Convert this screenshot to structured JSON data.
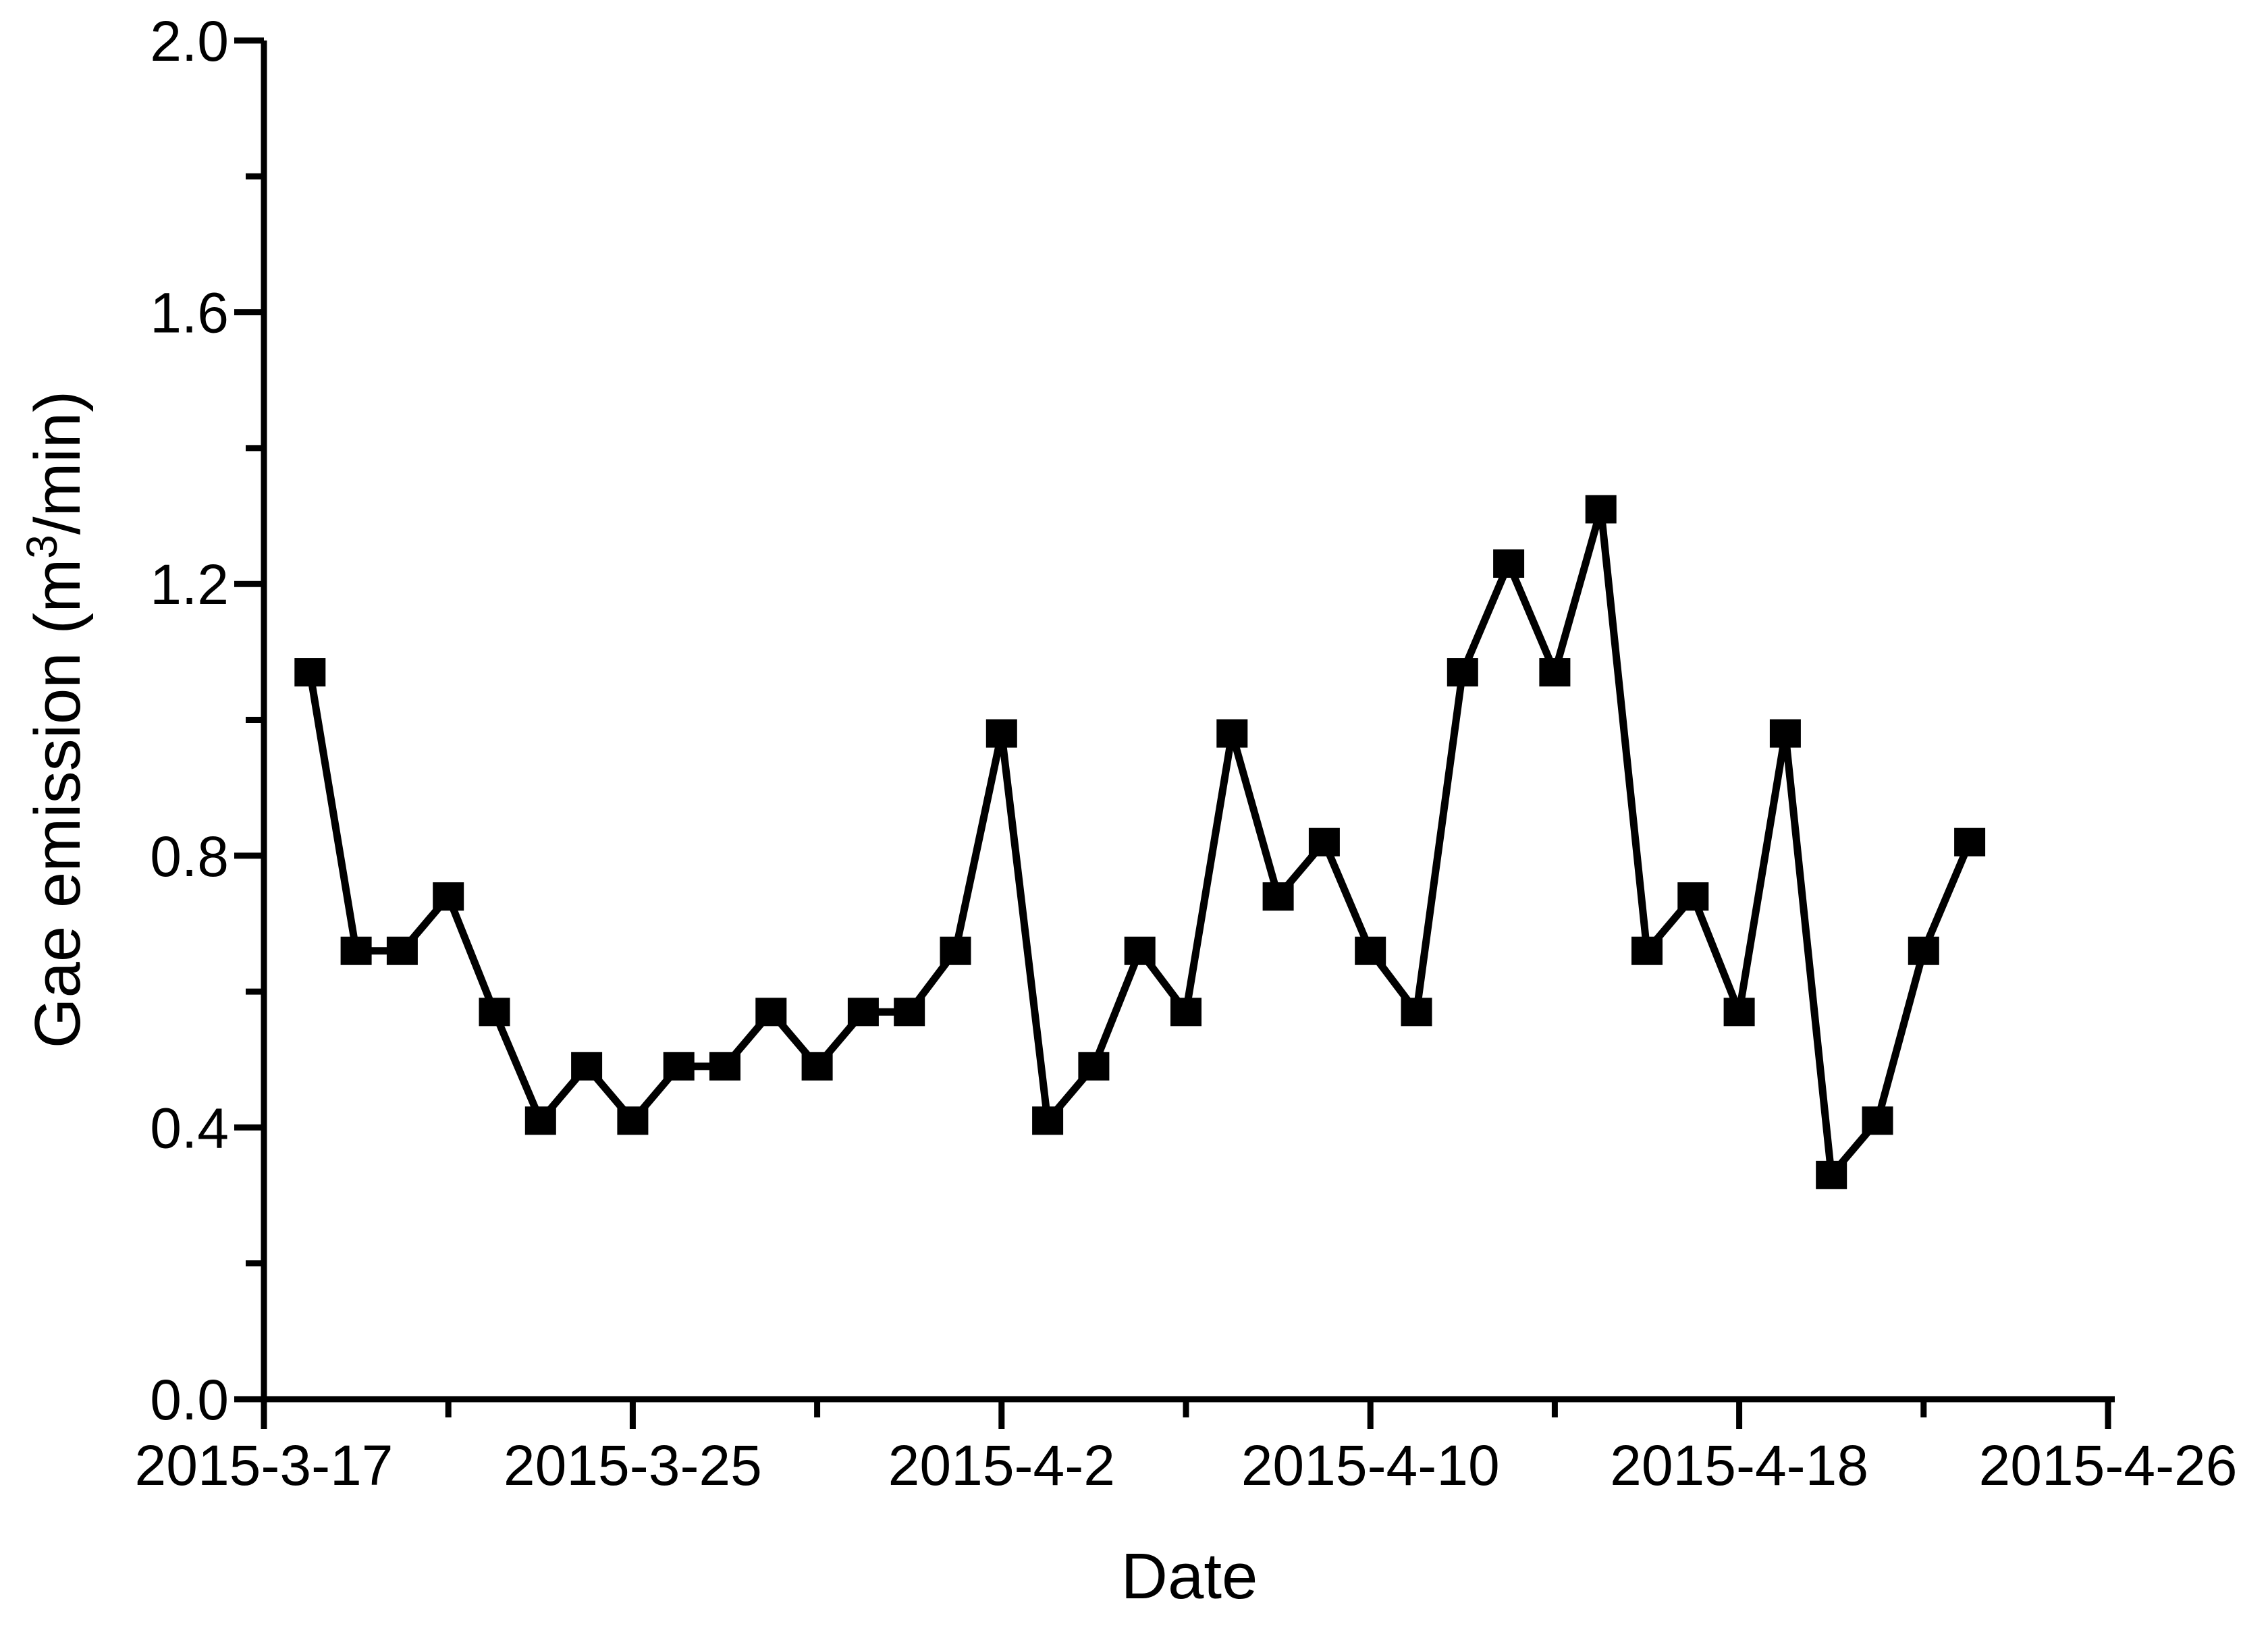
{
  "chart_data": {
    "type": "line",
    "title": "",
    "xlabel": "Date",
    "ylabel": "Gae emission (m3/min)",
    "ylabel_parts": {
      "prefix": "Gae emission (m",
      "superscript": "3",
      "suffix": "/min)"
    },
    "x": [
      "2015-3-18",
      "2015-3-19",
      "2015-3-20",
      "2015-3-21",
      "2015-3-22",
      "2015-3-23",
      "2015-3-24",
      "2015-3-25",
      "2015-3-26",
      "2015-3-27",
      "2015-3-28",
      "2015-3-29",
      "2015-3-30",
      "2015-3-31",
      "2015-4-1",
      "2015-4-2",
      "2015-4-3",
      "2015-4-4",
      "2015-4-5",
      "2015-4-6",
      "2015-4-7",
      "2015-4-8",
      "2015-4-9",
      "2015-4-10",
      "2015-4-11",
      "2015-4-12",
      "2015-4-13",
      "2015-4-14",
      "2015-4-15",
      "2015-4-16",
      "2015-4-17",
      "2015-4-18",
      "2015-4-19",
      "2015-4-20",
      "2015-4-21",
      "2015-4-22",
      "2015-4-23"
    ],
    "y": [
      1.07,
      0.66,
      0.66,
      0.74,
      0.57,
      0.41,
      0.49,
      0.41,
      0.49,
      0.49,
      0.57,
      0.49,
      0.57,
      0.57,
      0.66,
      0.98,
      0.41,
      0.49,
      0.66,
      0.57,
      0.98,
      0.74,
      0.82,
      0.66,
      0.57,
      1.07,
      1.23,
      1.07,
      1.31,
      0.66,
      0.74,
      0.57,
      0.98,
      0.33,
      0.41,
      0.66,
      0.82
    ],
    "x_tick_labels": [
      "2015-3-17",
      "2015-3-25",
      "2015-4-2",
      "2015-4-10",
      "2015-4-18",
      "2015-4-26"
    ],
    "x_tick_day_offsets": [
      0,
      8,
      16,
      24,
      32,
      40
    ],
    "x_minor_tick_day_offsets": [
      4,
      12,
      20,
      28,
      36
    ],
    "y_tick_labels": [
      "0.0",
      "0.4",
      "0.8",
      "1.2",
      "1.6",
      "2.0"
    ],
    "y_tick_values": [
      0.0,
      0.4,
      0.8,
      1.2,
      1.6,
      2.0
    ],
    "y_minor_tick_values": [
      0.2,
      0.6,
      1.0,
      1.4,
      1.8
    ],
    "ylim": [
      0.0,
      2.0
    ],
    "xlim": [
      "2015-3-17",
      "2015-4-26"
    ],
    "grid": false,
    "legend": false,
    "marker": "square",
    "line_color": "#000000",
    "background_color": "#ffffff"
  }
}
